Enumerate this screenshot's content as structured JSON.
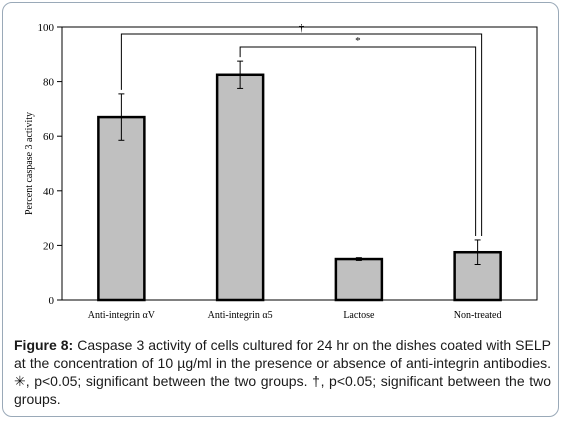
{
  "chart_data": {
    "type": "bar",
    "categories": [
      "Anti-integrin αV",
      "Anti-integrin α5",
      "Lactose",
      "Non-treated"
    ],
    "values": [
      67,
      82.5,
      15,
      17.5
    ],
    "errors": [
      8.5,
      5,
      0.5,
      4.5
    ],
    "ylabel": "Percent caspase 3 activity",
    "xlabel": "",
    "ylim": [
      0,
      100
    ],
    "yticks": [
      0,
      20,
      40,
      60,
      80,
      100
    ],
    "grid": false,
    "bar_color": "#c0c0c0",
    "significance": [
      {
        "from": 0,
        "to": 3,
        "symbol": "†"
      },
      {
        "from": 1,
        "to": 3,
        "symbol": "*"
      }
    ]
  },
  "caption": {
    "label": "Figure 8:",
    "text": " Caspase 3 activity of cells cultured for 24 hr on the dishes coated with SELP at the concentration of 10 µg/ml in the presence or absence of anti-integrin antibodies.  ✳, p<0.05; significant between the two groups. †, p<0.05; significant between the two groups."
  }
}
